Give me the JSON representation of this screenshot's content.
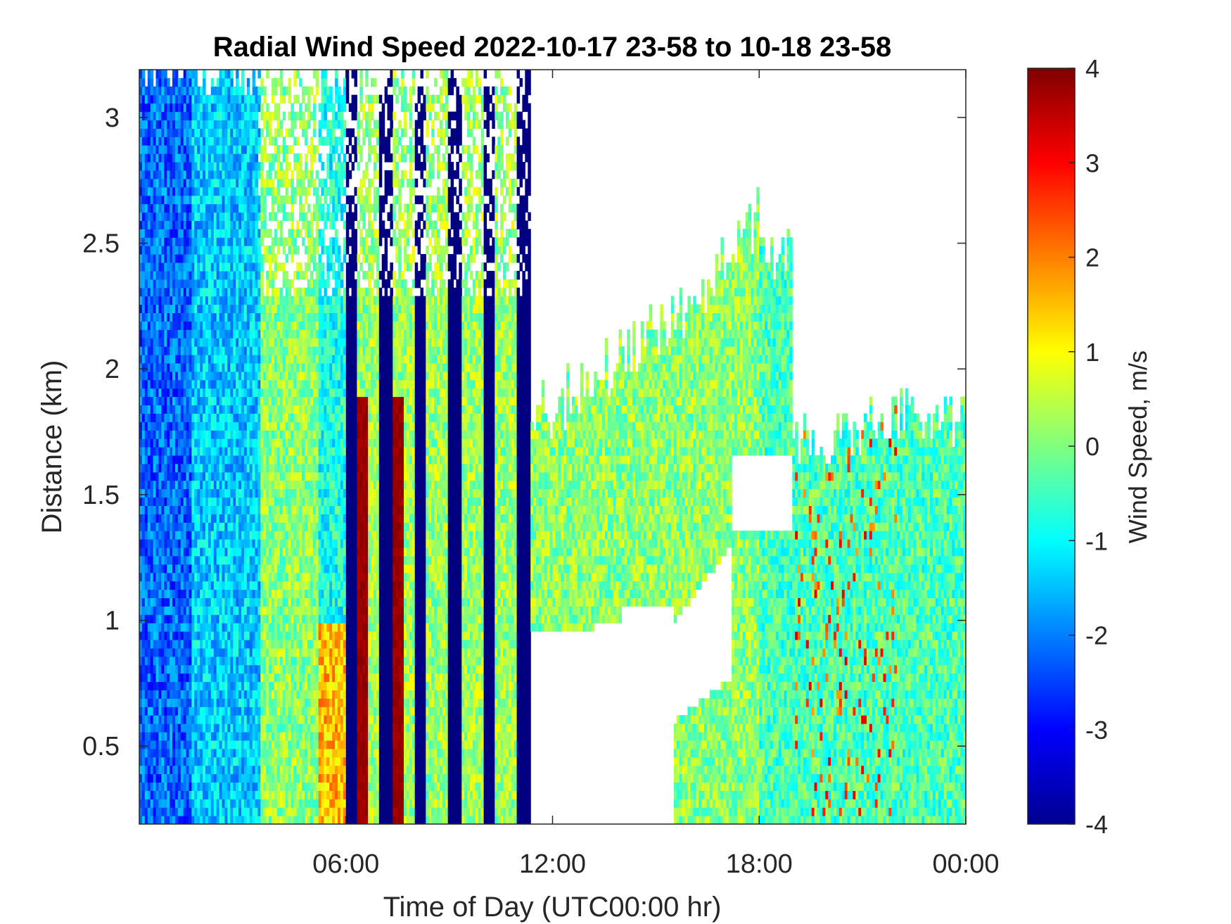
{
  "chart_data": {
    "type": "heatmap",
    "title": "Radial Wind Speed 2022-10-17 23-58 to 10-18 23-58",
    "xlabel": "Time of Day (UTC00:00 hr)",
    "ylabel": "Distance (km)",
    "xlim": [
      0,
      24
    ],
    "ylim": [
      0.19,
      3.19
    ],
    "x_ticks": [
      {
        "value": 6,
        "label": "06:00"
      },
      {
        "value": 12,
        "label": "12:00"
      },
      {
        "value": 18,
        "label": "18:00"
      },
      {
        "value": 24,
        "label": "00:00"
      }
    ],
    "y_ticks": [
      {
        "value": 0.5,
        "label": "0.5"
      },
      {
        "value": 1,
        "label": "1"
      },
      {
        "value": 1.5,
        "label": "1.5"
      },
      {
        "value": 2,
        "label": "2"
      },
      {
        "value": 2.5,
        "label": "2.5"
      },
      {
        "value": 3,
        "label": "3"
      }
    ],
    "colorbar": {
      "label": "Wind Speed, m/s",
      "range": [
        -4,
        4
      ],
      "colormap": "jet",
      "ticks": [
        {
          "value": 4,
          "label": "4"
        },
        {
          "value": 3,
          "label": "3"
        },
        {
          "value": 2,
          "label": "2"
        },
        {
          "value": 1,
          "label": "1"
        },
        {
          "value": 0,
          "label": "0"
        },
        {
          "value": -1,
          "label": "-1"
        },
        {
          "value": -2,
          "label": "-2"
        },
        {
          "value": -3,
          "label": "-3"
        },
        {
          "value": -4,
          "label": "-4"
        }
      ]
    },
    "regions": [
      {
        "name": "early-morning-column",
        "x_range": [
          0,
          3.5
        ],
        "y_range": [
          0.19,
          3.19
        ],
        "typical_speed": -1.5
      },
      {
        "name": "mixed-column",
        "x_range": [
          3.5,
          5.2
        ],
        "y_range": [
          0.19,
          2.3
        ],
        "typical_speed": 0
      },
      {
        "name": "strong-positive-band",
        "x_range": [
          6,
          8.2
        ],
        "y_range": [
          0.19,
          1.9
        ],
        "typical_speed": 3.5
      },
      {
        "name": "strong-negative-bands",
        "x_range": [
          6,
          11.4
        ],
        "y_range": [
          0.19,
          3.19
        ],
        "typical_speed": -4
      },
      {
        "name": "daytime-layer",
        "x_range": [
          11.4,
          18
        ],
        "y_range": [
          0.9,
          2.6
        ],
        "typical_speed": 0.2
      },
      {
        "name": "evening-layer",
        "x_range": [
          15.5,
          24
        ],
        "y_range": [
          0.19,
          1.85
        ],
        "typical_speed": -0.3
      }
    ]
  }
}
